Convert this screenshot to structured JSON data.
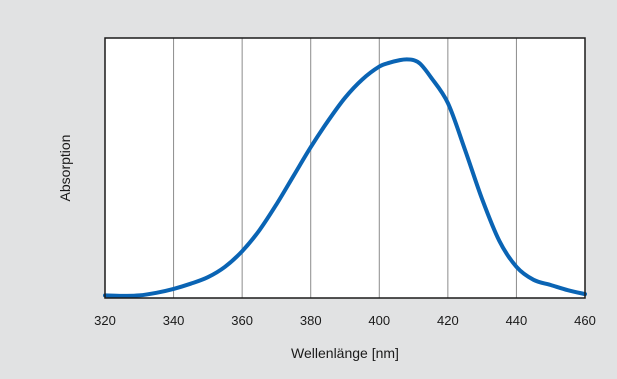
{
  "chart_data": {
    "type": "line",
    "title": "",
    "xlabel": "Wellenlänge [nm]",
    "ylabel": "Absorption",
    "xlim": [
      320,
      460
    ],
    "ylim": [
      0,
      1
    ],
    "x_ticks": [
      320,
      340,
      360,
      380,
      400,
      420,
      440,
      460
    ],
    "x_tick_labels": [
      "320",
      "340",
      "360",
      "380",
      "400",
      "420",
      "440",
      "460"
    ],
    "y_ticks_shown": false,
    "grid": {
      "vertical": true,
      "horizontal": false
    },
    "legend": "none",
    "series": [
      {
        "color": "#0a64b4",
        "x": [
          320,
          325,
          330,
          335,
          340,
          345,
          350,
          355,
          360,
          365,
          370,
          375,
          380,
          385,
          390,
          395,
          400,
          403,
          406,
          408,
          410,
          412,
          415,
          420,
          425,
          430,
          435,
          440,
          445,
          450,
          455,
          460
        ],
        "y": [
          0.01,
          0.008,
          0.01,
          0.02,
          0.035,
          0.055,
          0.08,
          0.12,
          0.18,
          0.26,
          0.36,
          0.47,
          0.58,
          0.68,
          0.77,
          0.84,
          0.89,
          0.905,
          0.915,
          0.918,
          0.915,
          0.9,
          0.85,
          0.75,
          0.57,
          0.38,
          0.22,
          0.12,
          0.07,
          0.05,
          0.03,
          0.015
        ]
      }
    ]
  }
}
